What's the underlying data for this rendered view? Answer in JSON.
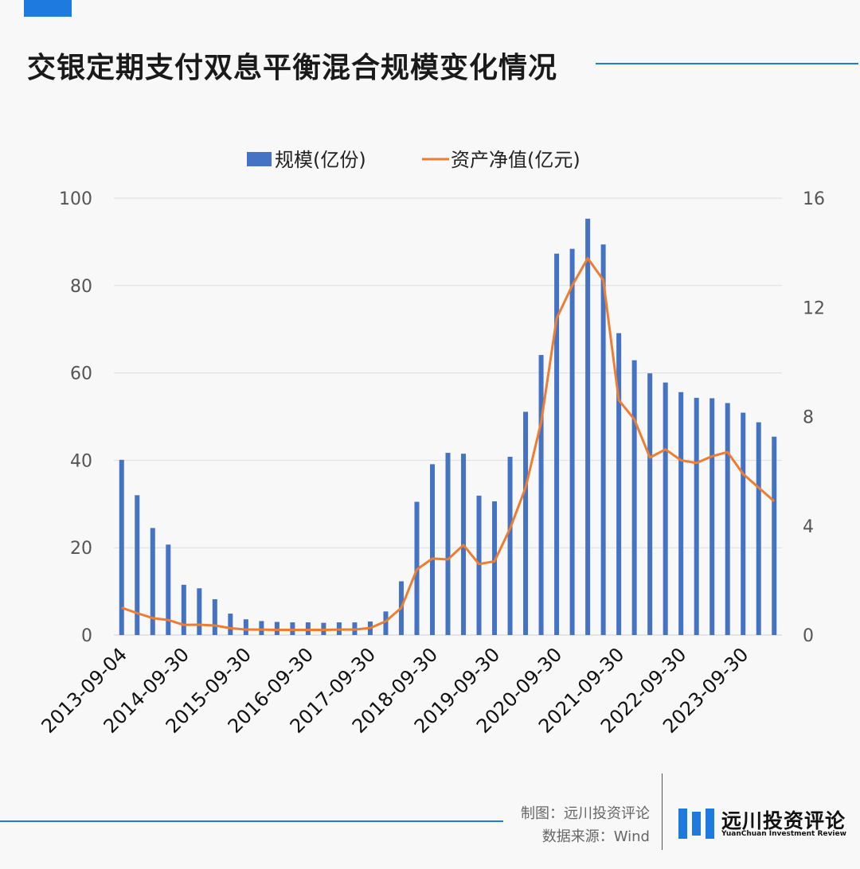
{
  "header": {
    "title": "交银定期支付双息平衡混合规模变化情况"
  },
  "footer": {
    "credit_maker": "制图：远川投资评论",
    "credit_source": "数据来源：Wind",
    "logo_cn": "远川投资评论",
    "logo_en": "YuanChuan Investment Review"
  },
  "colors": {
    "accent": "#1f7ae0",
    "bar": "#4472c4",
    "line": "#ed7d31"
  },
  "chart_data": {
    "type": "bar",
    "title": "交银定期支付双息平衡混合规模变化情况",
    "legend_placement": "top-center",
    "grid": true,
    "x_tick_labels": [
      "2013-09-04",
      "2014-09-30",
      "2015-09-30",
      "2016-09-30",
      "2017-09-30",
      "2018-09-30",
      "2019-09-30",
      "2020-09-30",
      "2021-09-30",
      "2022-09-30",
      "2023-09-30"
    ],
    "y_ticks_left": [
      0,
      20,
      40,
      60,
      80,
      100
    ],
    "y_ticks_right": [
      0,
      4,
      8,
      12,
      16
    ],
    "ylim_left": [
      0,
      100
    ],
    "ylim_right": [
      0,
      16
    ],
    "series": [
      {
        "name": "规模(亿份)",
        "type": "bar",
        "axis": "left",
        "values": [
          40.1,
          32.0,
          24.5,
          20.7,
          11.5,
          10.7,
          8.2,
          4.9,
          3.6,
          3.2,
          3.0,
          2.9,
          2.9,
          2.8,
          2.9,
          2.9,
          3.1,
          5.4,
          12.3,
          30.5,
          39.1,
          41.7,
          41.5,
          31.9,
          30.6,
          40.8,
          51.1,
          64.1,
          87.3,
          88.4,
          95.3,
          89.4,
          69.1,
          62.9,
          59.9,
          57.8,
          55.6,
          54.3,
          54.2,
          53.1,
          50.9,
          48.7,
          45.4
        ]
      },
      {
        "name": "资产净值(亿元)",
        "type": "line",
        "axis": "right",
        "values": [
          1.0,
          0.8,
          0.62,
          0.55,
          0.37,
          0.38,
          0.35,
          0.25,
          0.2,
          0.2,
          0.19,
          0.19,
          0.19,
          0.19,
          0.2,
          0.2,
          0.26,
          0.5,
          1.0,
          2.4,
          2.8,
          2.77,
          3.3,
          2.6,
          2.7,
          3.9,
          5.4,
          7.8,
          11.6,
          12.8,
          13.8,
          13.0,
          8.6,
          7.9,
          6.5,
          6.8,
          6.4,
          6.3,
          6.55,
          6.7,
          5.9,
          5.4,
          4.9
        ]
      }
    ]
  }
}
